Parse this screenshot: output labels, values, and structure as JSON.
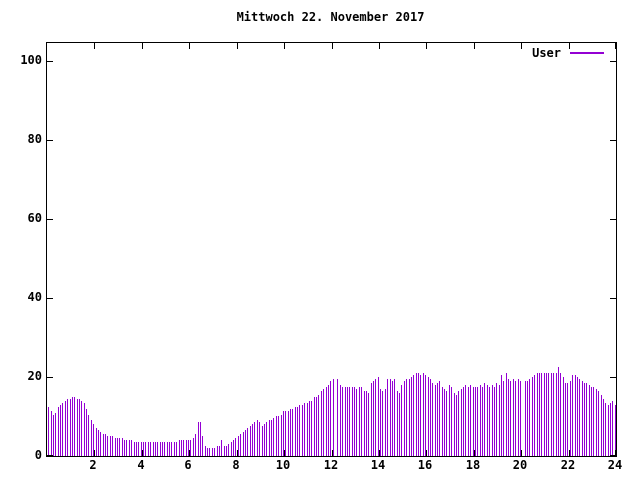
{
  "window": {
    "background": "#ffffff",
    "frame_color": "#000000"
  },
  "chart_data": {
    "type": "bar",
    "style": "impulses",
    "title": "Mittwoch 22. November 2017",
    "xlabel": "",
    "ylabel": "",
    "xlim": [
      0,
      24
    ],
    "ylim": [
      0,
      104.5
    ],
    "x_ticks": [
      2,
      4,
      6,
      8,
      10,
      12,
      14,
      16,
      18,
      20,
      22,
      24
    ],
    "y_ticks": [
      0,
      20,
      40,
      60,
      80,
      100
    ],
    "grid": false,
    "legend_position": "top-right-inside",
    "series": [
      {
        "name": "User",
        "color": "#9400d3",
        "x_start": 0.05,
        "x_interval": 0.1,
        "values": [
          12.5,
          11.5,
          10.5,
          11,
          12.5,
          13,
          13.5,
          14,
          14.5,
          14.5,
          15,
          15,
          14.5,
          14.5,
          14,
          13.5,
          12,
          10.5,
          9,
          8,
          7,
          6.5,
          6,
          5.5,
          5.5,
          5,
          5,
          5,
          4.5,
          4.5,
          4.5,
          4.5,
          4,
          4,
          4,
          4,
          3.5,
          3.5,
          3.5,
          3.5,
          3.5,
          3.5,
          3.5,
          3.5,
          3.5,
          3.5,
          3.5,
          3.5,
          3.5,
          3.5,
          3.5,
          3.5,
          3.5,
          3.5,
          3.5,
          4,
          4,
          4,
          4,
          4,
          4,
          4.5,
          5.5,
          8.5,
          8.5,
          5,
          2.5,
          2,
          2,
          2,
          2,
          2.5,
          2.5,
          4,
          2.5,
          2.5,
          3,
          3.5,
          4,
          4.5,
          5,
          5.5,
          6,
          6.5,
          7,
          7.5,
          8,
          8.5,
          9,
          8.5,
          7.5,
          8,
          8.5,
          9,
          9,
          9.5,
          10,
          10,
          10.5,
          11.5,
          11.5,
          11.5,
          12,
          12,
          12.5,
          12.5,
          13,
          13,
          13.5,
          13.5,
          14,
          14,
          15,
          15,
          15.5,
          16.5,
          17,
          17.5,
          18,
          19,
          19.5,
          null,
          19.5,
          18,
          17.5,
          17.5,
          17.5,
          17.5,
          17.5,
          17.5,
          17,
          17.5,
          17.5,
          16.5,
          16.5,
          16,
          18.5,
          19,
          19.5,
          20,
          17,
          16.5,
          17,
          19.5,
          19.5,
          19,
          19.5,
          16.5,
          16,
          18,
          19,
          19.5,
          19.5,
          20,
          20.5,
          21,
          21,
          20.5,
          21,
          20.5,
          20,
          19.5,
          18.5,
          18,
          18.5,
          19,
          17.5,
          17,
          16.5,
          18,
          17.5,
          16,
          15.5,
          16.5,
          17,
          17.5,
          18,
          17.5,
          18,
          17.5,
          17.5,
          17.5,
          18,
          17.5,
          18.5,
          18,
          17.5,
          18,
          17.5,
          18.5,
          18,
          20.5,
          19,
          21,
          19.5,
          19,
          19.5,
          19,
          19.5,
          19,
          null,
          19,
          19,
          19.5,
          20,
          20.5,
          21,
          21,
          21,
          21,
          21,
          21,
          21,
          21,
          21,
          22.5,
          21,
          20,
          18.5,
          18.5,
          19,
          20.5,
          20.5,
          20,
          19.5,
          19,
          18.5,
          18.5,
          18,
          17.5,
          17.5,
          17,
          16.5,
          15.5,
          14.5,
          13.5,
          13,
          13.5,
          14,
          13
        ]
      }
    ]
  }
}
